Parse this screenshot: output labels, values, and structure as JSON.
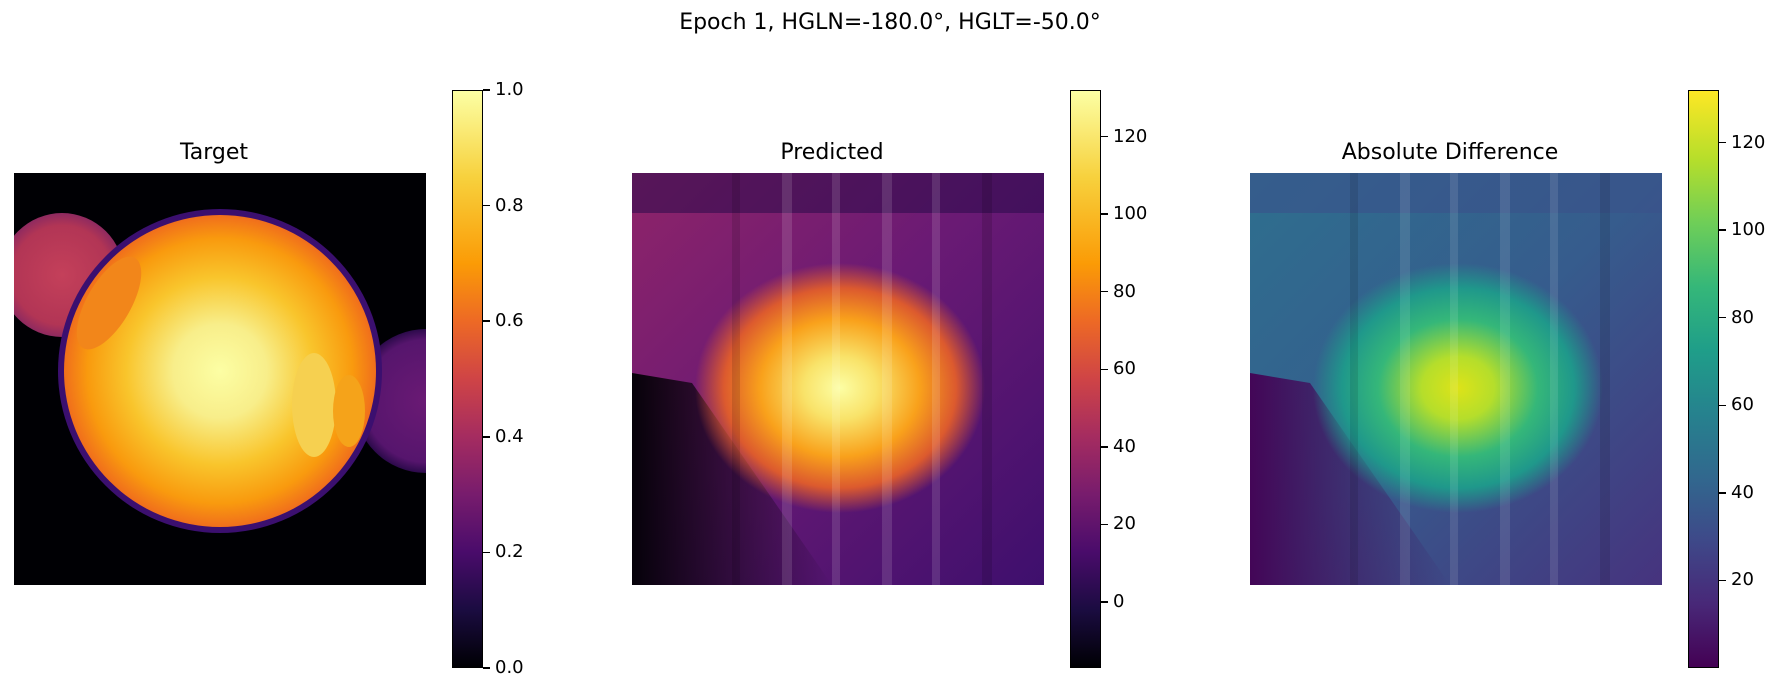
{
  "suptitle": "Epoch 1, HGLN=-180.0°, HGLT=-50.0°",
  "panels": [
    {
      "title": "Target",
      "colormap": "inferno"
    },
    {
      "title": "Predicted",
      "colormap": "inferno"
    },
    {
      "title": "Absolute Difference",
      "colormap": "viridis"
    }
  ],
  "chart_data": [
    {
      "type": "heatmap",
      "title": "Target",
      "colormap": "inferno",
      "colorbar": {
        "vmin": 0.0,
        "vmax": 1.0,
        "ticks": [
          0.0,
          0.2,
          0.4,
          0.6,
          0.8,
          1.0
        ],
        "tick_labels": [
          "0.0",
          "0.2",
          "0.4",
          "0.6",
          "0.8",
          "1.0"
        ]
      },
      "description_features": "large bright disk centered, two smaller dimmer disks top-left and right"
    },
    {
      "type": "heatmap",
      "title": "Predicted",
      "colormap": "inferno",
      "colorbar": {
        "vmin": -17,
        "vmax": 132,
        "ticks": [
          0,
          20,
          40,
          60,
          80,
          100,
          120
        ],
        "tick_labels": [
          "0",
          "20",
          "40",
          "60",
          "80",
          "100",
          "120"
        ]
      }
    },
    {
      "type": "heatmap",
      "title": "Absolute Difference",
      "colormap": "viridis",
      "colorbar": {
        "vmin": 0,
        "vmax": 132,
        "ticks": [
          20,
          40,
          60,
          80,
          100,
          120
        ],
        "tick_labels": [
          "20",
          "40",
          "60",
          "80",
          "100",
          "120"
        ]
      }
    }
  ]
}
